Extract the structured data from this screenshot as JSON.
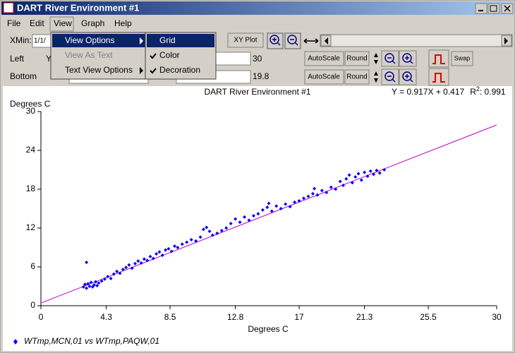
{
  "window": {
    "title": "DART River Environment #1"
  },
  "menu": [
    "File",
    "Edit",
    "View",
    "Graph",
    "Help"
  ],
  "view_menu": {
    "items": [
      "View Options",
      "View As Text",
      "Text View Options"
    ],
    "submenu": [
      "Grid",
      "Color",
      "Decoration"
    ]
  },
  "toolbar": {
    "xmin_label": "XMin:",
    "xmin_value": "1/1/",
    "xy_plot": "XY Plot",
    "left_label": "Left",
    "left_value": "30",
    "bottom_label": "Bottom",
    "bottom_value": "19.8",
    "autoscale": "AutoScale",
    "round": "Round",
    "swap": "Swap"
  },
  "chart_data": {
    "type": "scatter",
    "title": "DART River Environment #1",
    "x_label": "Degrees C",
    "y_label": "Degrees C",
    "xlim": [
      0,
      30
    ],
    "ylim": [
      0,
      30
    ],
    "xticks": [
      0,
      4.3,
      8.5,
      12.8,
      17,
      21.3,
      25.5,
      30
    ],
    "yticks": [
      0,
      6,
      12,
      18,
      24,
      30
    ],
    "regression": {
      "equation": "Y = 0.917X + 0.417",
      "r2_label": "R",
      "r2_sup": "2",
      "r2_text": ": 0.991",
      "slope": 0.917,
      "intercept": 0.417,
      "color": "#c000c0"
    },
    "series": [
      {
        "name": "WTmp,MCN,01 vs WTmp,PAQW,01",
        "color": "#0000ff",
        "x": [
          2.8,
          2.9,
          3.0,
          3.1,
          3.2,
          3.3,
          3.4,
          3.5,
          3.6,
          3.7,
          3.8,
          3.0,
          4.0,
          4.2,
          4.4,
          4.6,
          4.8,
          5.0,
          5.2,
          5.4,
          5.6,
          5.8,
          6.0,
          6.2,
          6.4,
          6.6,
          6.8,
          7.0,
          7.2,
          7.4,
          7.6,
          7.8,
          8.0,
          8.2,
          8.4,
          8.6,
          8.8,
          9.0,
          9.3,
          9.6,
          9.9,
          10.2,
          10.5,
          10.7,
          10.9,
          11.1,
          11.3,
          11.6,
          11.9,
          12.2,
          12.5,
          12.8,
          13.1,
          13.4,
          13.7,
          14.0,
          14.3,
          14.6,
          14.9,
          15.2,
          15.5,
          15.8,
          16.1,
          16.4,
          16.7,
          17.0,
          17.3,
          17.6,
          17.9,
          18.2,
          18.5,
          18.8,
          19.1,
          19.4,
          19.7,
          19.9,
          20.1,
          20.3,
          20.5,
          20.7,
          20.9,
          21.1,
          21.3,
          21.5,
          21.7,
          21.9,
          22.1,
          22.3,
          22.6,
          18.0,
          15.0
        ],
        "values": [
          2.9,
          3.3,
          2.7,
          3.4,
          3.0,
          3.6,
          2.9,
          3.2,
          3.7,
          3.1,
          3.5,
          6.7,
          3.8,
          4.1,
          4.5,
          4.2,
          4.9,
          5.3,
          5.0,
          5.6,
          5.9,
          6.3,
          5.8,
          6.5,
          6.9,
          6.6,
          7.2,
          7.0,
          7.6,
          7.3,
          8.0,
          8.3,
          7.8,
          8.6,
          8.8,
          8.4,
          9.2,
          9.0,
          9.5,
          9.8,
          10.2,
          10.0,
          10.6,
          11.8,
          12.1,
          11.5,
          10.9,
          11.2,
          11.6,
          12.0,
          12.7,
          13.4,
          12.9,
          13.7,
          13.2,
          13.9,
          14.2,
          14.8,
          15.2,
          14.6,
          15.4,
          15.0,
          15.7,
          15.3,
          16.0,
          16.2,
          16.6,
          16.9,
          17.3,
          17.1,
          17.8,
          17.5,
          18.3,
          18.0,
          19.2,
          18.6,
          19.6,
          20.2,
          19.0,
          19.9,
          20.4,
          19.4,
          20.6,
          20.0,
          20.8,
          20.3,
          20.9,
          20.5,
          21.0,
          18.1,
          15.8
        ]
      }
    ]
  }
}
